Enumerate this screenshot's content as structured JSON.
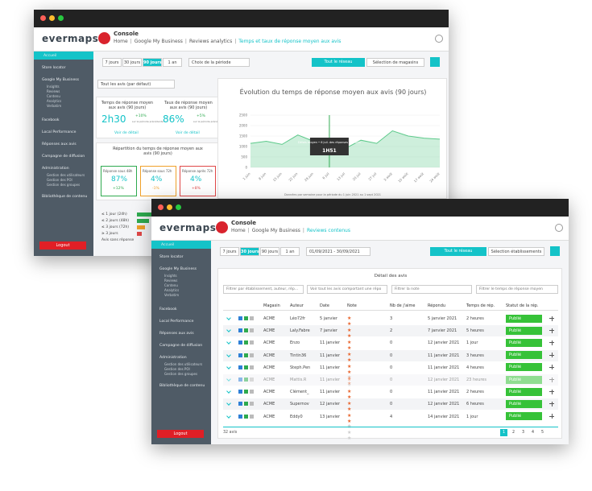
{
  "sidebar": {
    "items": [
      "Accueil",
      "Store locator",
      "Google My Business",
      "Facebook",
      "Local Performance",
      "Réponses aux avis",
      "Campagne de diffusion",
      "Administration",
      "Bibliothèque de contenu"
    ],
    "gmb_sub": [
      "Insights",
      "Reviews",
      "Contenu",
      "Analytics",
      "Verbatim"
    ],
    "admin_sub": [
      "Gestion des utilisateurs",
      "Gestion des POI",
      "Gestion des groupes"
    ],
    "logout": "Logout",
    "logo": "evermaps"
  },
  "back": {
    "header": {
      "title": "Console",
      "breadcrumb": [
        "Home",
        "Google My Business",
        "Reviews analytics",
        "Temps et taux de réponse moyen aux avis"
      ]
    },
    "periods": [
      "7 jours",
      "30 jours",
      "90 jours",
      "1 an"
    ],
    "period_picker": "Choix de la période",
    "scope": [
      "Tout le réseau",
      "Sélection de magasins"
    ],
    "filter": "Tout les avis (par défaut)",
    "kpis": [
      {
        "label": "Temps de réponse moyen aux avis (90 jours)",
        "value": "2h30",
        "delta": "+10%",
        "note": "sur la période précédente",
        "link": "Voir de détail"
      },
      {
        "label": "Taux de réponse moyen aux avis (90 jours)",
        "value": "86%",
        "delta": "+5%",
        "note": "sur la période précédente",
        "link": "Voir de détail"
      }
    ],
    "distribution": {
      "title": "Répartition du temps de réponse moyen aux avis (90 jours)",
      "boxes": [
        {
          "label": "Réponse sous 48h",
          "value": "87%",
          "delta": "+12%"
        },
        {
          "label": "Réponse sous 72h",
          "value": "4%",
          "delta": "-1%"
        },
        {
          "label": "Réponse après 72h",
          "value": "4%",
          "delta": "+8%"
        }
      ],
      "bars": {
        "categories": [
          "≤ 1 jour (24h)",
          "≤ 2 jours (48h)",
          "≤ 3 jours (72h)",
          "≥ 3 jours"
        ],
        "values": [
          60,
          15,
          10,
          6
        ],
        "xlim": [
          0,
          100
        ]
      },
      "no_reply": "Avis sans réponse"
    },
    "chart": {
      "type": "area",
      "title": "Évolution du temps de réponse moyen aux avis (90 jours)",
      "color": "#5cc98a",
      "categories": [
        "1 juin",
        "8 juin",
        "15 juin",
        "22 juin",
        "29 juin",
        "6 juil",
        "13 juil",
        "20 juil",
        "27 juil",
        "3 août",
        "10 août",
        "17 août",
        "24 août"
      ],
      "values": [
        1150,
        1250,
        1100,
        1550,
        1250,
        1000,
        900,
        1300,
        1150,
        1750,
        1500,
        1400,
        1350
      ],
      "ylim": [
        0,
        2500
      ],
      "yticks": [
        0,
        500,
        1000,
        1500,
        2000,
        2500
      ],
      "tooltip": {
        "label": "Délais moyen • 6 juil. des réponses aux avis",
        "value": "1H51"
      },
      "footnote": "Données par semaine pour la période du 1 juin 2021 au 1 sept 2021"
    }
  },
  "front": {
    "header": {
      "title": "Console",
      "breadcrumb": [
        "Home",
        "Google My Business",
        "Reviews contenus"
      ]
    },
    "periods": [
      "7 jours",
      "30 jours",
      "90 jours",
      "1 an"
    ],
    "date_range": "01/09/2021 - 30/09/2021",
    "scope": [
      "Tout le réseau",
      "Sélection établissements"
    ],
    "table": {
      "title": "Détail des avis",
      "filters": [
        "Filtrer par établissement, auteur, rép...",
        "Voir tout les avis comportant une répo",
        "Filtrer la note",
        "Filtrer le temps de réponse moyen"
      ],
      "columns": [
        "Magasin",
        "Auteur",
        "Date",
        "Note",
        "Nb de j'aime",
        "Répondu",
        "Temps de rép.",
        "Statut de la rép."
      ],
      "rows": [
        {
          "store": "ACME",
          "author": "Léo72fr",
          "date": "5 janvier",
          "rating": 4,
          "likes": "3",
          "replied": "5 janvier 2021",
          "time": "2 heures",
          "status": "Publié"
        },
        {
          "store": "ACME",
          "author": "Laly.Fabre",
          "date": "7 janvier",
          "rating": 4,
          "likes": "2",
          "replied": "7 janvier 2021",
          "time": "5 heures",
          "status": "Publié"
        },
        {
          "store": "ACME",
          "author": "Enzo",
          "date": "11 janvier",
          "rating": 2,
          "likes": "0",
          "replied": "12 janvier 2021",
          "time": "1 jour",
          "status": "Publié"
        },
        {
          "store": "ACME",
          "author": "Tintin36",
          "date": "11 janvier",
          "rating": 3,
          "likes": "0",
          "replied": "11 janvier 2021",
          "time": "3 heures",
          "status": "Publié"
        },
        {
          "store": "ACME",
          "author": "Steph.Pen",
          "date": "11 janvier",
          "rating": 5,
          "likes": "0",
          "replied": "11 janvier 2021",
          "time": "4 heures",
          "status": "Publié"
        },
        {
          "store": "ACME",
          "author": "Mattis.R",
          "date": "11 janvier",
          "rating": 1,
          "likes": "0",
          "replied": "12 janvier 2021",
          "time": "23 heures",
          "status": "Publié"
        },
        {
          "store": "ACME",
          "author": "Clément_",
          "date": "11 janvier",
          "rating": 2,
          "likes": "0",
          "replied": "11 janvier 2021",
          "time": "2 heures",
          "status": "Publié"
        },
        {
          "store": "ACME",
          "author": "Supernov",
          "date": "12 janvier",
          "rating": 3,
          "likes": "0",
          "replied": "12 janvier 2021",
          "time": "6 heures",
          "status": "Publié"
        },
        {
          "store": "ACME",
          "author": "Eddy0",
          "date": "13 janvier",
          "rating": 2,
          "likes": "4",
          "replied": "14 janvier 2021",
          "time": "1 jour",
          "status": "Publié"
        }
      ],
      "count": "32 avis",
      "pages": [
        "1",
        "2",
        "3",
        "4",
        "5"
      ]
    }
  }
}
